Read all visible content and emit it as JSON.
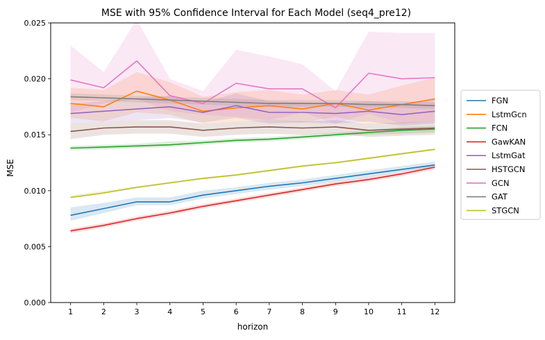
{
  "chart_data": {
    "type": "line",
    "title": "MSE with 95% Confidence Interval for Each Model (seq4_pre12)",
    "xlabel": "horizon",
    "ylabel": "MSE",
    "x": [
      1,
      2,
      3,
      4,
      5,
      6,
      7,
      8,
      9,
      10,
      11,
      12
    ],
    "xlim": [
      0.4,
      12.6
    ],
    "ylim": [
      0,
      0.025
    ],
    "yticks": [
      "0.000",
      "0.005",
      "0.010",
      "0.015",
      "0.020",
      "0.025"
    ],
    "grid": false,
    "legend_position": "right",
    "series": [
      {
        "name": "FGN",
        "color": "#1f77b4",
        "values": [
          0.0078,
          0.0084,
          0.009,
          0.009,
          0.0096,
          0.01,
          0.0104,
          0.0107,
          0.0111,
          0.0115,
          0.0119,
          0.0123
        ],
        "ci_low": [
          0.0073,
          0.008,
          0.0087,
          0.0087,
          0.0093,
          0.0097,
          0.0101,
          0.0104,
          0.0108,
          0.0112,
          0.0117,
          0.0121
        ],
        "ci_high": [
          0.0085,
          0.0089,
          0.0094,
          0.0094,
          0.01,
          0.0103,
          0.0107,
          0.011,
          0.0114,
          0.0118,
          0.0122,
          0.0126
        ]
      },
      {
        "name": "LstmGcn",
        "color": "#ff7f0e",
        "values": [
          0.0178,
          0.0175,
          0.0189,
          0.0181,
          0.0171,
          0.0174,
          0.0176,
          0.0173,
          0.0178,
          0.0172,
          0.0177,
          0.0182
        ],
        "ci_low": [
          0.0165,
          0.0162,
          0.017,
          0.0168,
          0.016,
          0.0162,
          0.0163,
          0.0161,
          0.0166,
          0.016,
          0.016,
          0.0162
        ],
        "ci_high": [
          0.0192,
          0.019,
          0.0206,
          0.0197,
          0.0184,
          0.0188,
          0.019,
          0.0186,
          0.019,
          0.0186,
          0.0194,
          0.0201
        ]
      },
      {
        "name": "FCN",
        "color": "#2ca02c",
        "values": [
          0.0138,
          0.0139,
          0.014,
          0.0141,
          0.0143,
          0.0145,
          0.0146,
          0.0148,
          0.015,
          0.0152,
          0.0154,
          0.0155
        ],
        "ci_low": [
          0.0136,
          0.0137,
          0.0138,
          0.0139,
          0.0141,
          0.0143,
          0.0144,
          0.0146,
          0.0148,
          0.015,
          0.0151,
          0.0152
        ],
        "ci_high": [
          0.014,
          0.0141,
          0.0142,
          0.0144,
          0.0145,
          0.0147,
          0.0148,
          0.015,
          0.0152,
          0.0154,
          0.0157,
          0.0158
        ]
      },
      {
        "name": "GawKAN",
        "color": "#d62728",
        "values": [
          0.0064,
          0.0069,
          0.0075,
          0.008,
          0.0086,
          0.0091,
          0.0096,
          0.0101,
          0.0106,
          0.011,
          0.0115,
          0.0121
        ],
        "ci_low": [
          0.0062,
          0.0067,
          0.0073,
          0.0078,
          0.0084,
          0.0089,
          0.0094,
          0.0099,
          0.0104,
          0.0108,
          0.0113,
          0.0119
        ],
        "ci_high": [
          0.0066,
          0.0071,
          0.0077,
          0.0082,
          0.0088,
          0.0093,
          0.0098,
          0.0103,
          0.0108,
          0.0112,
          0.0117,
          0.0123
        ]
      },
      {
        "name": "LstmGat",
        "color": "#9467bd",
        "values": [
          0.0169,
          0.0171,
          0.0173,
          0.0175,
          0.017,
          0.0176,
          0.017,
          0.017,
          0.0169,
          0.0171,
          0.0168,
          0.0171
        ],
        "ci_low": [
          0.016,
          0.0162,
          0.0163,
          0.0165,
          0.0161,
          0.0165,
          0.016,
          0.0161,
          0.016,
          0.0162,
          0.0158,
          0.016
        ],
        "ci_high": [
          0.0178,
          0.018,
          0.0183,
          0.0185,
          0.0179,
          0.0187,
          0.018,
          0.0179,
          0.0178,
          0.018,
          0.0178,
          0.0182
        ]
      },
      {
        "name": "HSTGCN",
        "color": "#8c564b",
        "values": [
          0.0153,
          0.0156,
          0.0157,
          0.0157,
          0.0154,
          0.0156,
          0.0157,
          0.0156,
          0.0157,
          0.0154,
          0.0155,
          0.0156
        ],
        "ci_low": [
          0.0146,
          0.015,
          0.0151,
          0.0151,
          0.0148,
          0.015,
          0.0151,
          0.015,
          0.0151,
          0.0148,
          0.0149,
          0.015
        ],
        "ci_high": [
          0.016,
          0.0162,
          0.0163,
          0.0163,
          0.016,
          0.0162,
          0.0163,
          0.0162,
          0.0163,
          0.016,
          0.0161,
          0.0162
        ]
      },
      {
        "name": "GCN",
        "color": "#e377c2",
        "values": [
          0.0199,
          0.0192,
          0.0216,
          0.0185,
          0.0178,
          0.0196,
          0.0191,
          0.0191,
          0.0174,
          0.0205,
          0.02,
          0.0201
        ],
        "ci_low": [
          0.017,
          0.0178,
          0.0182,
          0.0171,
          0.0168,
          0.0166,
          0.0163,
          0.017,
          0.016,
          0.0169,
          0.016,
          0.0162
        ],
        "ci_high": [
          0.023,
          0.0206,
          0.0253,
          0.02,
          0.0189,
          0.0226,
          0.022,
          0.0213,
          0.0189,
          0.0242,
          0.0241,
          0.0241
        ]
      },
      {
        "name": "GAT",
        "color": "#7f7f7f",
        "values": [
          0.0184,
          0.0183,
          0.0182,
          0.0181,
          0.018,
          0.0179,
          0.0178,
          0.0178,
          0.0178,
          0.0177,
          0.0177,
          0.0176
        ],
        "ci_low": [
          0.0181,
          0.018,
          0.0179,
          0.0178,
          0.0177,
          0.0176,
          0.0175,
          0.0175,
          0.0175,
          0.0174,
          0.0174,
          0.0173
        ],
        "ci_high": [
          0.0187,
          0.0186,
          0.0185,
          0.0184,
          0.0183,
          0.0182,
          0.0181,
          0.0181,
          0.0181,
          0.018,
          0.018,
          0.0179
        ]
      },
      {
        "name": "STGCN",
        "color": "#bcbd22",
        "values": [
          0.0094,
          0.0098,
          0.0103,
          0.0107,
          0.0111,
          0.0114,
          0.0118,
          0.0122,
          0.0125,
          0.0129,
          0.0133,
          0.0137
        ],
        "ci_low": [
          0.0093,
          0.0097,
          0.0102,
          0.0106,
          0.011,
          0.0113,
          0.0117,
          0.0121,
          0.0124,
          0.0128,
          0.0132,
          0.0136
        ],
        "ci_high": [
          0.0096,
          0.01,
          0.0104,
          0.0108,
          0.0112,
          0.0115,
          0.0119,
          0.0123,
          0.0126,
          0.013,
          0.0134,
          0.0138
        ]
      }
    ]
  }
}
